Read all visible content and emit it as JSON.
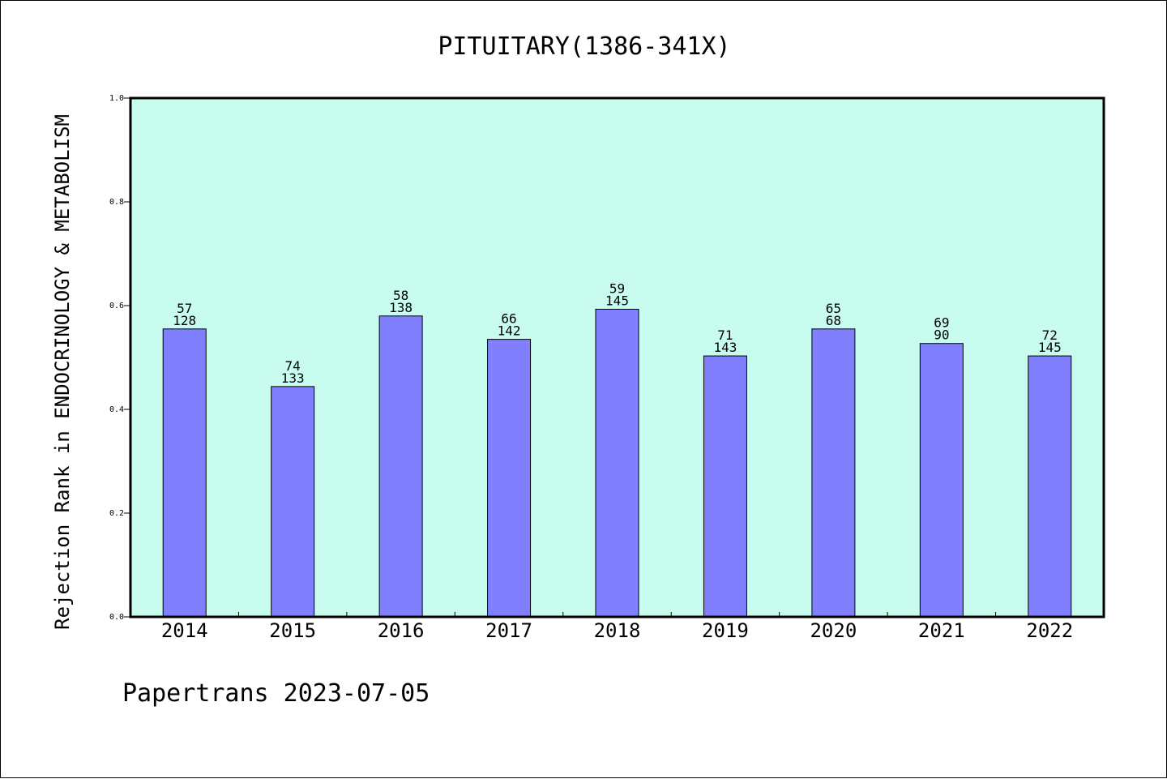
{
  "chart_data": {
    "type": "bar",
    "title": "PITUITARY(1386-341X)",
    "ylabel": "Rejection Rank in ENDOCRINOLOGY & METABOLISM",
    "xlabel": "",
    "categories": [
      "2014",
      "2015",
      "2016",
      "2017",
      "2018",
      "2019",
      "2020",
      "2021",
      "2022"
    ],
    "values": [
      0.555,
      0.444,
      0.58,
      0.535,
      0.593,
      0.503,
      0.555,
      0.527,
      0.503
    ],
    "annotations": [
      [
        "57",
        "128"
      ],
      [
        "74",
        "133"
      ],
      [
        "58",
        "138"
      ],
      [
        "66",
        "142"
      ],
      [
        "59",
        "145"
      ],
      [
        "71",
        "143"
      ],
      [
        "65",
        "68"
      ],
      [
        "69",
        "90"
      ],
      [
        "72",
        "145"
      ]
    ],
    "ylim": [
      0.0,
      1.0
    ],
    "yticks": [
      "0.0",
      "0.2",
      "0.4",
      "0.6",
      "0.8",
      "1.0"
    ],
    "grid": false,
    "colors": {
      "plot_background": "#c8fcef",
      "bar_fill": "#8080ff",
      "bar_stroke": "#000000"
    }
  },
  "footer": "Papertrans 2023-07-05"
}
